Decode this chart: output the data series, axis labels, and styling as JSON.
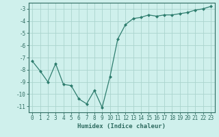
{
  "x": [
    0,
    1,
    2,
    3,
    4,
    5,
    6,
    7,
    8,
    9,
    10,
    11,
    12,
    13,
    14,
    15,
    16,
    17,
    18,
    19,
    20,
    21,
    22,
    23
  ],
  "y": [
    -7.3,
    -8.1,
    -9.0,
    -7.5,
    -9.2,
    -9.3,
    -10.4,
    -10.8,
    -9.7,
    -11.1,
    -8.6,
    -5.5,
    -4.3,
    -3.8,
    -3.7,
    -3.5,
    -3.6,
    -3.5,
    -3.5,
    -3.4,
    -3.3,
    -3.1,
    -3.0,
    -2.8
  ],
  "line_color": "#2e7d6e",
  "marker": "D",
  "marker_size": 2.0,
  "linewidth": 0.9,
  "bg_color": "#cff0ec",
  "grid_color": "#aad4ce",
  "xlabel": "Humidex (Indice chaleur)",
  "xlim": [
    -0.5,
    23.5
  ],
  "ylim": [
    -11.5,
    -2.5
  ],
  "yticks": [
    -11,
    -10,
    -9,
    -8,
    -7,
    -6,
    -5,
    -4,
    -3
  ],
  "xticks": [
    0,
    1,
    2,
    3,
    4,
    5,
    6,
    7,
    8,
    9,
    10,
    11,
    12,
    13,
    14,
    15,
    16,
    17,
    18,
    19,
    20,
    21,
    22,
    23
  ],
  "tick_color": "#2e6b60",
  "axis_color": "#2e6b60",
  "label_fontsize": 6.5,
  "tick_fontsize": 5.5
}
